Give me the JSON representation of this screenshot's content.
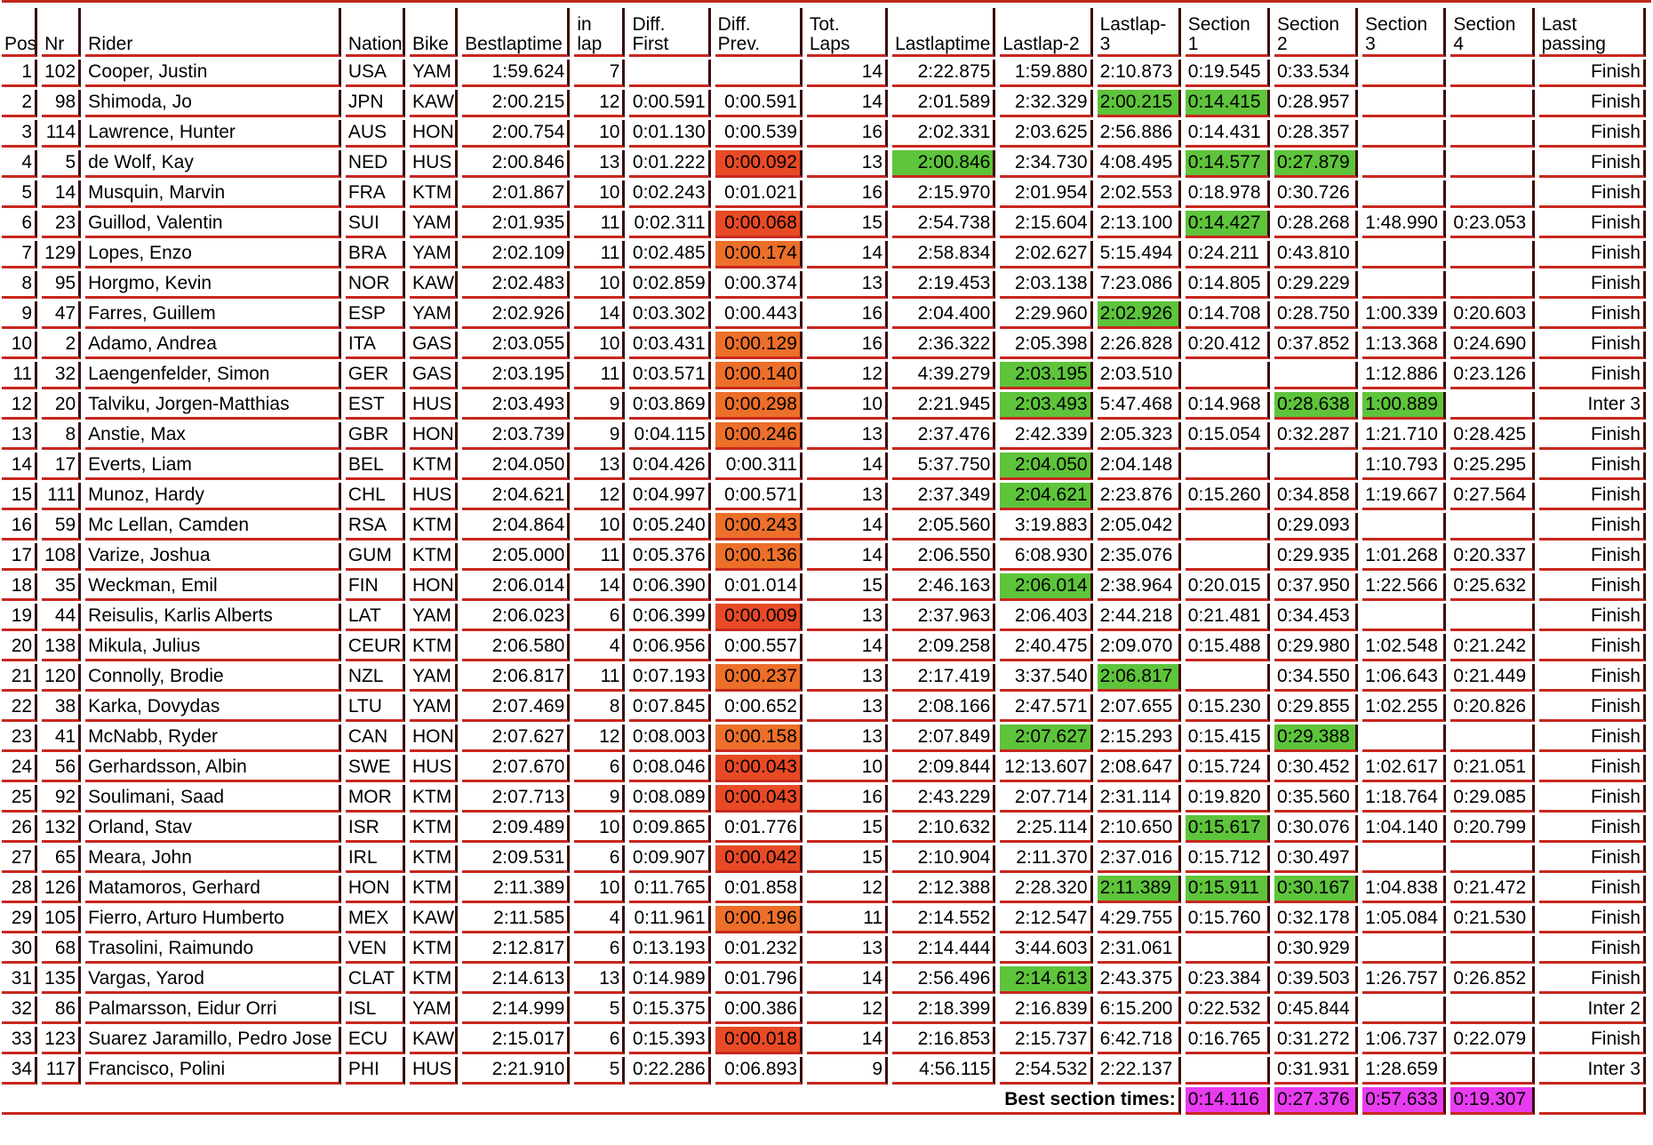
{
  "colors": {
    "green": "#5ec43b",
    "red": "#e84a26",
    "orange": "#ec6f2a",
    "magenta": "#e83cf0",
    "rule": "#c8281e"
  },
  "headers": [
    "Pos",
    "Nr",
    "Rider",
    "Nation",
    "Bike",
    "Bestlaptime",
    "in lap",
    "Diff. First",
    "Diff. Prev.",
    "Tot. Laps",
    "Lastlaptime",
    "Lastlap-2",
    "Lastlap-3",
    "Section 1",
    "Section 2",
    "Section 3",
    "Section 4",
    "Last passing"
  ],
  "rows": [
    {
      "cells": [
        "1",
        "102",
        "Cooper, Justin",
        "USA",
        "YAM",
        "1:59.624",
        "7",
        "",
        "",
        "14",
        "2:22.875",
        "1:59.880",
        "2:10.873",
        "0:19.545",
        "0:33.534",
        "",
        "",
        "Finish"
      ],
      "hl": {}
    },
    {
      "cells": [
        "2",
        "98",
        "Shimoda, Jo",
        "JPN",
        "KAW",
        "2:00.215",
        "12",
        "0:00.591",
        "0:00.591",
        "14",
        "2:01.589",
        "2:32.329",
        "2:00.215",
        "0:14.415",
        "0:28.957",
        "",
        "",
        "Finish"
      ],
      "hl": {
        "12": "green",
        "13": "green"
      }
    },
    {
      "cells": [
        "3",
        "114",
        "Lawrence, Hunter",
        "AUS",
        "HON",
        "2:00.754",
        "10",
        "0:01.130",
        "0:00.539",
        "16",
        "2:02.331",
        "2:03.625",
        "2:56.886",
        "0:14.431",
        "0:28.357",
        "",
        "",
        "Finish"
      ],
      "hl": {}
    },
    {
      "cells": [
        "4",
        "5",
        "de Wolf, Kay",
        "NED",
        "HUS",
        "2:00.846",
        "13",
        "0:01.222",
        "0:00.092",
        "13",
        "2:00.846",
        "2:34.730",
        "4:08.495",
        "0:14.577",
        "0:27.879",
        "",
        "",
        "Finish"
      ],
      "hl": {
        "8": "red",
        "10": "green",
        "13": "green",
        "14": "green"
      }
    },
    {
      "cells": [
        "5",
        "14",
        "Musquin, Marvin",
        "FRA",
        "KTM",
        "2:01.867",
        "10",
        "0:02.243",
        "0:01.021",
        "16",
        "2:15.970",
        "2:01.954",
        "2:02.553",
        "0:18.978",
        "0:30.726",
        "",
        "",
        "Finish"
      ],
      "hl": {}
    },
    {
      "cells": [
        "6",
        "23",
        "Guillod, Valentin",
        "SUI",
        "YAM",
        "2:01.935",
        "11",
        "0:02.311",
        "0:00.068",
        "15",
        "2:54.738",
        "2:15.604",
        "2:13.100",
        "0:14.427",
        "0:28.268",
        "1:48.990",
        "0:23.053",
        "Finish"
      ],
      "hl": {
        "8": "red",
        "13": "green"
      }
    },
    {
      "cells": [
        "7",
        "129",
        "Lopes, Enzo",
        "BRA",
        "YAM",
        "2:02.109",
        "11",
        "0:02.485",
        "0:00.174",
        "14",
        "2:58.834",
        "2:02.627",
        "5:15.494",
        "0:24.211",
        "0:43.810",
        "",
        "",
        "Finish"
      ],
      "hl": {
        "8": "orange"
      }
    },
    {
      "cells": [
        "8",
        "95",
        "Horgmo, Kevin",
        "NOR",
        "KAW",
        "2:02.483",
        "10",
        "0:02.859",
        "0:00.374",
        "13",
        "2:19.453",
        "2:03.138",
        "7:23.086",
        "0:14.805",
        "0:29.229",
        "",
        "",
        "Finish"
      ],
      "hl": {}
    },
    {
      "cells": [
        "9",
        "47",
        "Farres, Guillem",
        "ESP",
        "YAM",
        "2:02.926",
        "14",
        "0:03.302",
        "0:00.443",
        "16",
        "2:04.400",
        "2:29.960",
        "2:02.926",
        "0:14.708",
        "0:28.750",
        "1:00.339",
        "0:20.603",
        "Finish"
      ],
      "hl": {
        "12": "green"
      }
    },
    {
      "cells": [
        "10",
        "2",
        "Adamo, Andrea",
        "ITA",
        "GAS",
        "2:03.055",
        "10",
        "0:03.431",
        "0:00.129",
        "16",
        "2:36.322",
        "2:05.398",
        "2:26.828",
        "0:20.412",
        "0:37.852",
        "1:13.368",
        "0:24.690",
        "Finish"
      ],
      "hl": {
        "8": "orange"
      }
    },
    {
      "cells": [
        "11",
        "32",
        "Laengenfelder, Simon",
        "GER",
        "GAS",
        "2:03.195",
        "11",
        "0:03.571",
        "0:00.140",
        "12",
        "4:39.279",
        "2:03.195",
        "2:03.510",
        "",
        "",
        "1:12.886",
        "0:23.126",
        "Finish"
      ],
      "hl": {
        "8": "orange",
        "11": "green"
      }
    },
    {
      "cells": [
        "12",
        "20",
        "Talviku, Jorgen-Matthias",
        "EST",
        "HUS",
        "2:03.493",
        "9",
        "0:03.869",
        "0:00.298",
        "10",
        "2:21.945",
        "2:03.493",
        "5:47.468",
        "0:14.968",
        "0:28.638",
        "1:00.889",
        "",
        "Inter 3"
      ],
      "hl": {
        "8": "orange",
        "11": "green",
        "14": "green",
        "15": "green"
      }
    },
    {
      "cells": [
        "13",
        "8",
        "Anstie, Max",
        "GBR",
        "HON",
        "2:03.739",
        "9",
        "0:04.115",
        "0:00.246",
        "13",
        "2:37.476",
        "2:42.339",
        "2:05.323",
        "0:15.054",
        "0:32.287",
        "1:21.710",
        "0:28.425",
        "Finish"
      ],
      "hl": {
        "8": "orange"
      }
    },
    {
      "cells": [
        "14",
        "17",
        "Everts, Liam",
        "BEL",
        "KTM",
        "2:04.050",
        "13",
        "0:04.426",
        "0:00.311",
        "14",
        "5:37.750",
        "2:04.050",
        "2:04.148",
        "",
        "",
        "1:10.793",
        "0:25.295",
        "Finish"
      ],
      "hl": {
        "11": "green"
      }
    },
    {
      "cells": [
        "15",
        "111",
        "Munoz, Hardy",
        "CHL",
        "HUS",
        "2:04.621",
        "12",
        "0:04.997",
        "0:00.571",
        "13",
        "2:37.349",
        "2:04.621",
        "2:23.876",
        "0:15.260",
        "0:34.858",
        "1:19.667",
        "0:27.564",
        "Finish"
      ],
      "hl": {
        "11": "green"
      }
    },
    {
      "cells": [
        "16",
        "59",
        "Mc Lellan, Camden",
        "RSA",
        "KTM",
        "2:04.864",
        "10",
        "0:05.240",
        "0:00.243",
        "14",
        "2:05.560",
        "3:19.883",
        "2:05.042",
        "",
        "0:29.093",
        "",
        "",
        "Finish"
      ],
      "hl": {
        "8": "orange"
      }
    },
    {
      "cells": [
        "17",
        "108",
        "Varize, Joshua",
        "GUM",
        "KTM",
        "2:05.000",
        "11",
        "0:05.376",
        "0:00.136",
        "14",
        "2:06.550",
        "6:08.930",
        "2:35.076",
        "",
        "0:29.935",
        "1:01.268",
        "0:20.337",
        "Finish"
      ],
      "hl": {
        "8": "orange"
      }
    },
    {
      "cells": [
        "18",
        "35",
        "Weckman, Emil",
        "FIN",
        "HON",
        "2:06.014",
        "14",
        "0:06.390",
        "0:01.014",
        "15",
        "2:46.163",
        "2:06.014",
        "2:38.964",
        "0:20.015",
        "0:37.950",
        "1:22.566",
        "0:25.632",
        "Finish"
      ],
      "hl": {
        "11": "green"
      }
    },
    {
      "cells": [
        "19",
        "44",
        "Reisulis, Karlis Alberts",
        "LAT",
        "YAM",
        "2:06.023",
        "6",
        "0:06.399",
        "0:00.009",
        "13",
        "2:37.963",
        "2:06.403",
        "2:44.218",
        "0:21.481",
        "0:34.453",
        "",
        "",
        "Finish"
      ],
      "hl": {
        "8": "red"
      }
    },
    {
      "cells": [
        "20",
        "138",
        "Mikula, Julius",
        "CEUR",
        "KTM",
        "2:06.580",
        "4",
        "0:06.956",
        "0:00.557",
        "14",
        "2:09.258",
        "2:40.475",
        "2:09.070",
        "0:15.488",
        "0:29.980",
        "1:02.548",
        "0:21.242",
        "Finish"
      ],
      "hl": {}
    },
    {
      "cells": [
        "21",
        "120",
        "Connolly, Brodie",
        "NZL",
        "YAM",
        "2:06.817",
        "11",
        "0:07.193",
        "0:00.237",
        "13",
        "2:17.419",
        "3:37.540",
        "2:06.817",
        "",
        "0:34.550",
        "1:06.643",
        "0:21.449",
        "Finish"
      ],
      "hl": {
        "8": "orange",
        "12": "green"
      }
    },
    {
      "cells": [
        "22",
        "38",
        "Karka, Dovydas",
        "LTU",
        "YAM",
        "2:07.469",
        "8",
        "0:07.845",
        "0:00.652",
        "13",
        "2:08.166",
        "2:47.571",
        "2:07.655",
        "0:15.230",
        "0:29.855",
        "1:02.255",
        "0:20.826",
        "Finish"
      ],
      "hl": {}
    },
    {
      "cells": [
        "23",
        "41",
        "McNabb, Ryder",
        "CAN",
        "HON",
        "2:07.627",
        "12",
        "0:08.003",
        "0:00.158",
        "13",
        "2:07.849",
        "2:07.627",
        "2:15.293",
        "0:15.415",
        "0:29.388",
        "",
        "",
        "Finish"
      ],
      "hl": {
        "8": "orange",
        "11": "green",
        "14": "green"
      }
    },
    {
      "cells": [
        "24",
        "56",
        "Gerhardsson, Albin",
        "SWE",
        "HUS",
        "2:07.670",
        "6",
        "0:08.046",
        "0:00.043",
        "10",
        "2:09.844",
        "12:13.607",
        "2:08.647",
        "0:15.724",
        "0:30.452",
        "1:02.617",
        "0:21.051",
        "Finish"
      ],
      "hl": {
        "8": "red"
      }
    },
    {
      "cells": [
        "25",
        "92",
        "Soulimani, Saad",
        "MOR",
        "KTM",
        "2:07.713",
        "9",
        "0:08.089",
        "0:00.043",
        "16",
        "2:43.229",
        "2:07.714",
        "2:31.114",
        "0:19.820",
        "0:35.560",
        "1:18.764",
        "0:29.085",
        "Finish"
      ],
      "hl": {
        "8": "red"
      }
    },
    {
      "cells": [
        "26",
        "132",
        "Orland, Stav",
        "ISR",
        "KTM",
        "2:09.489",
        "10",
        "0:09.865",
        "0:01.776",
        "15",
        "2:10.632",
        "2:25.114",
        "2:10.650",
        "0:15.617",
        "0:30.076",
        "1:04.140",
        "0:20.799",
        "Finish"
      ],
      "hl": {
        "13": "green"
      }
    },
    {
      "cells": [
        "27",
        "65",
        "Meara, John",
        "IRL",
        "KTM",
        "2:09.531",
        "6",
        "0:09.907",
        "0:00.042",
        "15",
        "2:10.904",
        "2:11.370",
        "2:37.016",
        "0:15.712",
        "0:30.497",
        "",
        "",
        "Finish"
      ],
      "hl": {
        "8": "red"
      }
    },
    {
      "cells": [
        "28",
        "126",
        "Matamoros, Gerhard",
        "HON",
        "KTM",
        "2:11.389",
        "10",
        "0:11.765",
        "0:01.858",
        "12",
        "2:12.388",
        "2:28.320",
        "2:11.389",
        "0:15.911",
        "0:30.167",
        "1:04.838",
        "0:21.472",
        "Finish"
      ],
      "hl": {
        "12": "green",
        "13": "green",
        "14": "green"
      }
    },
    {
      "cells": [
        "29",
        "105",
        "Fierro, Arturo Humberto",
        "MEX",
        "KAW",
        "2:11.585",
        "4",
        "0:11.961",
        "0:00.196",
        "11",
        "2:14.552",
        "2:12.547",
        "4:29.755",
        "0:15.760",
        "0:32.178",
        "1:05.084",
        "0:21.530",
        "Finish"
      ],
      "hl": {
        "8": "orange"
      }
    },
    {
      "cells": [
        "30",
        "68",
        "Trasolini, Raimundo",
        "VEN",
        "KTM",
        "2:12.817",
        "6",
        "0:13.193",
        "0:01.232",
        "13",
        "2:14.444",
        "3:44.603",
        "2:31.061",
        "",
        "0:30.929",
        "",
        "",
        "Finish"
      ],
      "hl": {}
    },
    {
      "cells": [
        "31",
        "135",
        "Vargas, Yarod",
        "CLAT",
        "KTM",
        "2:14.613",
        "13",
        "0:14.989",
        "0:01.796",
        "14",
        "2:56.496",
        "2:14.613",
        "2:43.375",
        "0:23.384",
        "0:39.503",
        "1:26.757",
        "0:26.852",
        "Finish"
      ],
      "hl": {
        "11": "green"
      }
    },
    {
      "cells": [
        "32",
        "86",
        "Palmarsson, Eidur Orri",
        "ISL",
        "YAM",
        "2:14.999",
        "5",
        "0:15.375",
        "0:00.386",
        "12",
        "2:18.399",
        "2:16.839",
        "6:15.200",
        "0:22.532",
        "0:45.844",
        "",
        "",
        "Inter 2"
      ],
      "hl": {}
    },
    {
      "cells": [
        "33",
        "123",
        "Suarez Jaramillo, Pedro Jose",
        "ECU",
        "KAW",
        "2:15.017",
        "6",
        "0:15.393",
        "0:00.018",
        "14",
        "2:16.853",
        "2:15.737",
        "6:42.718",
        "0:16.765",
        "0:31.272",
        "1:06.737",
        "0:22.079",
        "Finish"
      ],
      "hl": {
        "8": "red"
      }
    },
    {
      "cells": [
        "34",
        "117",
        "Francisco, Polini",
        "PHI",
        "HUS",
        "2:21.910",
        "5",
        "0:22.286",
        "0:06.893",
        "9",
        "4:56.115",
        "2:54.532",
        "2:22.137",
        "",
        "0:31.931",
        "1:28.659",
        "",
        "Inter 3"
      ],
      "hl": {}
    }
  ],
  "best_sections": {
    "label": "Best section times:",
    "values": [
      "0:14.116",
      "0:27.376",
      "0:57.633",
      "0:19.307"
    ]
  }
}
